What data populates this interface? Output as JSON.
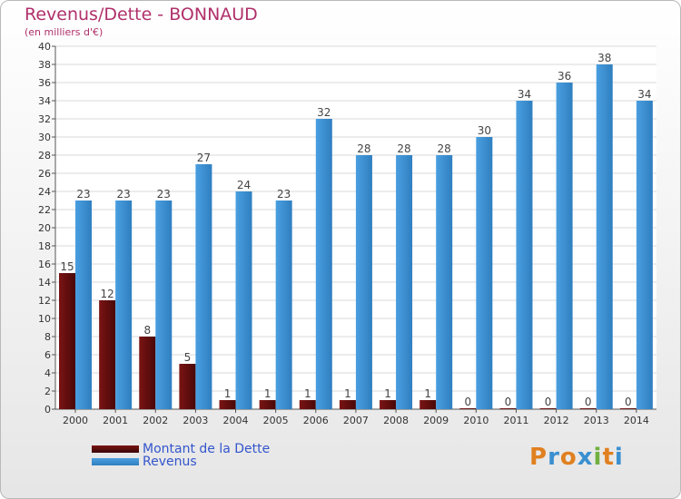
{
  "chart_data": {
    "type": "bar",
    "title": "Revenus/Dette - BONNAUD",
    "subtitle": "(en milliers d'€)",
    "categories": [
      "2000",
      "2001",
      "2002",
      "2003",
      "2004",
      "2005",
      "2006",
      "2007",
      "2008",
      "2009",
      "2010",
      "2011",
      "2012",
      "2013",
      "2014"
    ],
    "series": [
      {
        "name": "Montant de la Dette",
        "color": "#7a1414",
        "values": [
          15,
          12,
          8,
          5,
          1,
          1,
          1,
          1,
          1,
          1,
          0,
          0,
          0,
          0,
          0
        ]
      },
      {
        "name": "Revenus",
        "color": "#4a9fe0",
        "values": [
          23,
          23,
          23,
          27,
          24,
          23,
          32,
          28,
          28,
          28,
          30,
          34,
          36,
          38,
          34
        ]
      }
    ],
    "ylim": [
      0,
      40
    ],
    "ytick_step": 2,
    "grid": true,
    "legend": "bottom-left"
  },
  "logo": {
    "letters": [
      {
        "ch": "P",
        "color": "#e08020"
      },
      {
        "ch": "r",
        "color": "#3a8fd0"
      },
      {
        "ch": "o",
        "color": "#e08020"
      },
      {
        "ch": "x",
        "color": "#3a8fd0"
      },
      {
        "ch": "i",
        "color": "#70b040"
      },
      {
        "ch": "t",
        "color": "#e08020"
      },
      {
        "ch": "i",
        "color": "#3a8fd0"
      }
    ]
  }
}
